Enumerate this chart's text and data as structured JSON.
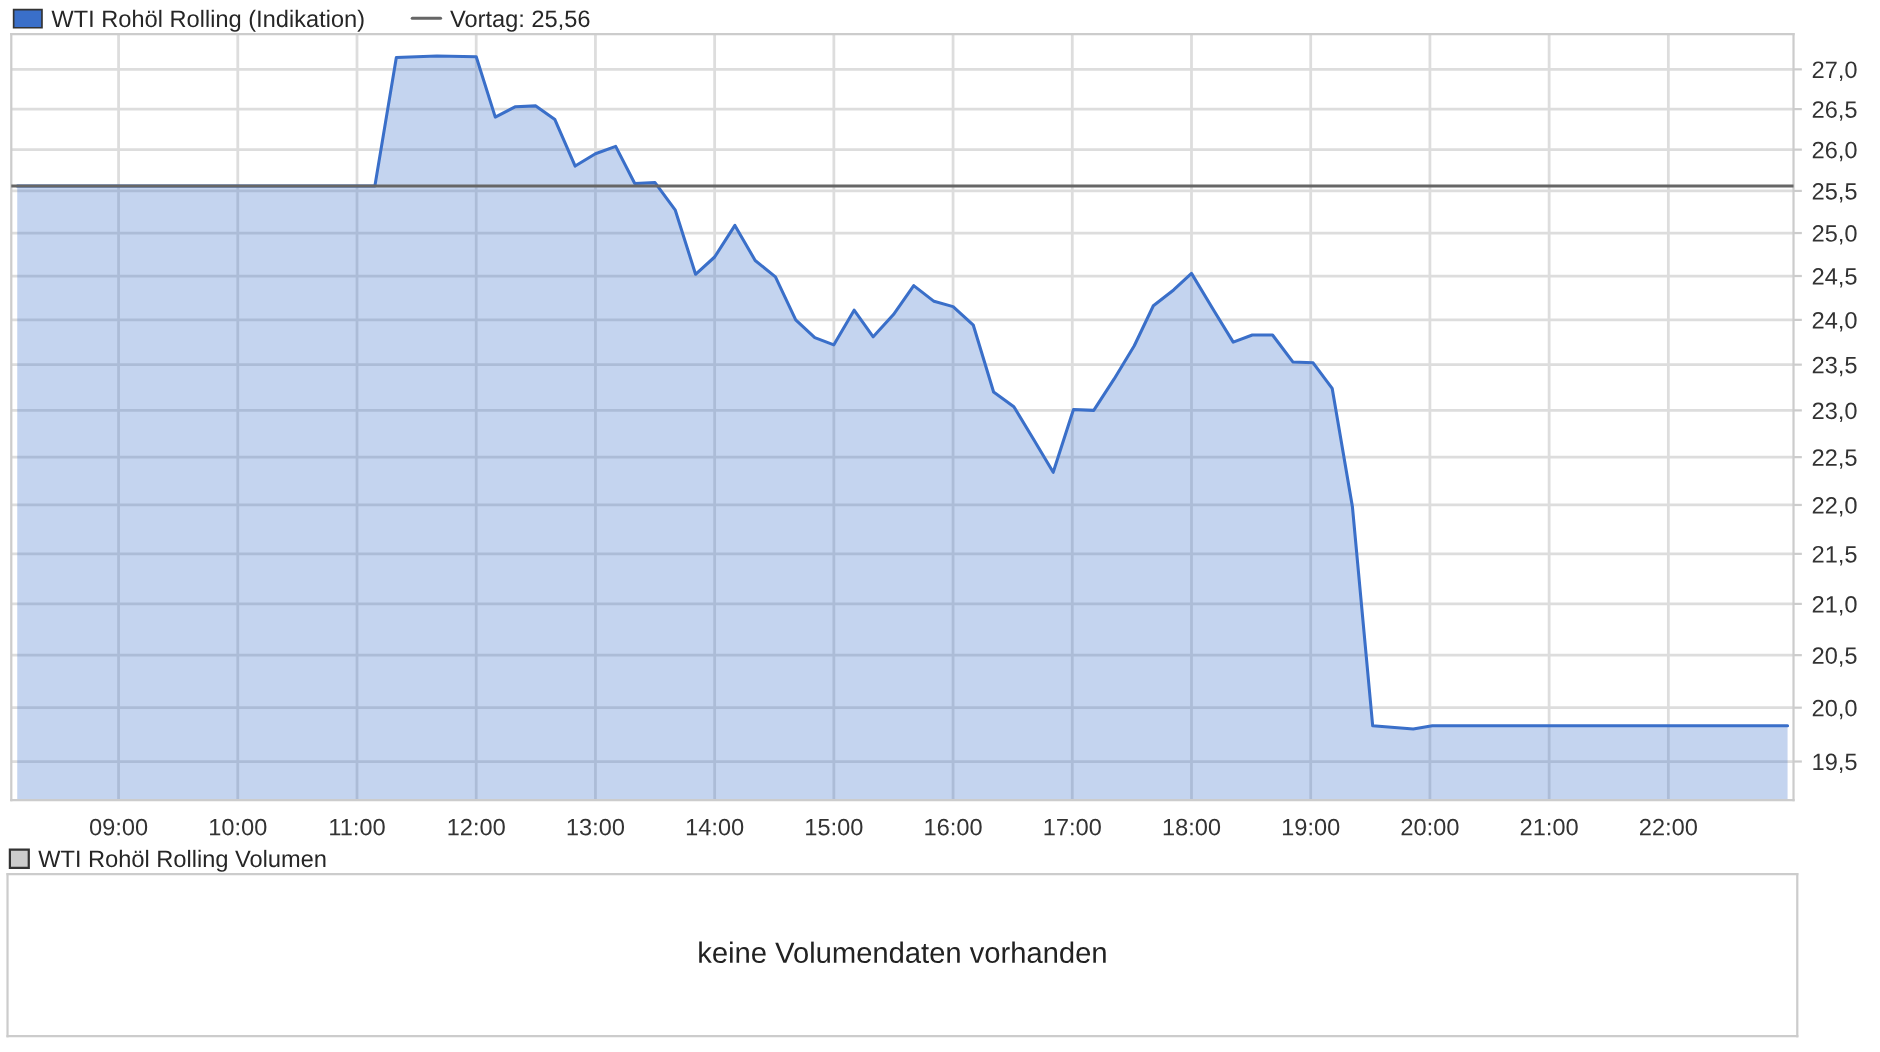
{
  "chart_data": [
    {
      "type": "area",
      "log": true,
      "grid": true,
      "legend": "top left",
      "marker": "none",
      "line_style": "solid",
      "x": [
        8.15,
        11.15,
        11.33,
        11.67,
        12.0,
        12.16,
        12.33,
        12.5,
        12.66,
        12.83,
        13.0,
        13.17,
        13.33,
        13.5,
        13.67,
        13.84,
        14.0,
        14.17,
        14.34,
        14.51,
        14.68,
        14.84,
        15.0,
        15.17,
        15.33,
        15.5,
        15.67,
        15.84,
        16.0,
        16.17,
        16.34,
        16.51,
        16.68,
        16.84,
        17.01,
        17.18,
        17.35,
        17.52,
        17.68,
        17.85,
        18.0,
        18.19,
        18.35,
        18.51,
        18.68,
        18.85,
        19.02,
        19.18,
        19.35,
        19.52,
        19.86,
        20.02,
        23.0
      ],
      "series": [
        {
          "name": "WTI Rohöl Rolling (Indikation)",
          "color": "#3a6fc9",
          "values": [
            25.56,
            25.56,
            27.15,
            27.17,
            27.16,
            26.4,
            26.53,
            26.54,
            26.37,
            25.8,
            25.95,
            26.04,
            25.59,
            25.6,
            25.27,
            24.52,
            24.72,
            25.09,
            24.68,
            24.49,
            24.0,
            23.8,
            23.72,
            24.11,
            23.81,
            24.06,
            24.39,
            24.21,
            24.15,
            23.94,
            23.2,
            23.04,
            22.68,
            22.34,
            23.01,
            23.0,
            23.34,
            23.71,
            24.16,
            24.34,
            24.53,
            24.1,
            23.75,
            23.83,
            23.83,
            23.53,
            23.52,
            23.24,
            21.98,
            19.83,
            19.8,
            19.83,
            19.83
          ]
        }
      ],
      "ref_lines": [
        {
          "axis": "y",
          "value": 25.56,
          "label": "Vortag: 25,56",
          "color": "#666666",
          "line_style": "solid"
        }
      ],
      "xlim": [
        8.1,
        23.05
      ],
      "xticks": [
        {
          "value": 9,
          "label": "09:00"
        },
        {
          "value": 10,
          "label": "10:00"
        },
        {
          "value": 11,
          "label": "11:00"
        },
        {
          "value": 12,
          "label": "12:00"
        },
        {
          "value": 13,
          "label": "13:00"
        },
        {
          "value": 14,
          "label": "14:00"
        },
        {
          "value": 15,
          "label": "15:00"
        },
        {
          "value": 16,
          "label": "16:00"
        },
        {
          "value": 17,
          "label": "17:00"
        },
        {
          "value": 18,
          "label": "18:00"
        },
        {
          "value": 19,
          "label": "19:00"
        },
        {
          "value": 20,
          "label": "20:00"
        },
        {
          "value": 21,
          "label": "21:00"
        },
        {
          "value": 22,
          "label": "22:00"
        }
      ],
      "ylim": [
        19.15,
        27.45
      ],
      "yticks": [
        {
          "value": 19.5,
          "label": "19,5"
        },
        {
          "value": 20.0,
          "label": "20,0"
        },
        {
          "value": 20.5,
          "label": "20,5"
        },
        {
          "value": 21.0,
          "label": "21,0"
        },
        {
          "value": 21.5,
          "label": "21,5"
        },
        {
          "value": 22.0,
          "label": "22,0"
        },
        {
          "value": 22.5,
          "label": "22,5"
        },
        {
          "value": 23.0,
          "label": "23,0"
        },
        {
          "value": 23.5,
          "label": "23,5"
        },
        {
          "value": 24.0,
          "label": "24,0"
        },
        {
          "value": 24.5,
          "label": "24,5"
        },
        {
          "value": 25.0,
          "label": "25,0"
        },
        {
          "value": 25.5,
          "label": "25,5"
        },
        {
          "value": 26.0,
          "label": "26,0"
        },
        {
          "value": 26.5,
          "label": "26,5"
        },
        {
          "value": 27.0,
          "label": "27,0"
        }
      ]
    },
    {
      "type": "other",
      "title": "WTI Rohöl Rolling Volumen",
      "annotations": [
        "keine Volumendaten vorhanden"
      ]
    }
  ]
}
